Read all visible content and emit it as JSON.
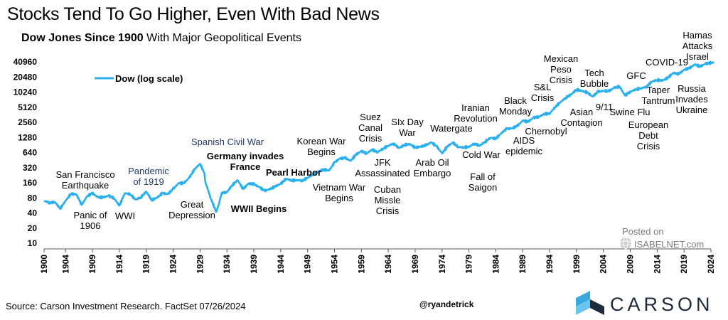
{
  "title": "Stocks Tend To Go Higher, Even With Bad News",
  "subtitle": {
    "bold": "Dow Jones Since 1900",
    "rest": " With Major Geopolitical Events"
  },
  "source": "Source: Carson Investment Research. FactSet 07/26/2024",
  "handle": "@ryandetrick",
  "posted": {
    "line1": "Posted on",
    "site": "ISABELNET.com"
  },
  "brand": {
    "name": "CARSON"
  },
  "colors": {
    "line": "#2ab0ee",
    "axis": "#555555",
    "event_dark": "#000000",
    "event_navy": "#1f3864",
    "brand": "#1d2b3a",
    "brand_light": "#3aa8e0"
  },
  "chart_data": {
    "type": "line",
    "title": "Stocks Tend To Go Higher, Even With Bad News",
    "subtitle": "Dow Jones Since 1900 With Major Geopolitical Events",
    "y_scale": "log",
    "ylim": [
      10,
      40960
    ],
    "xlim": [
      1900,
      2024
    ],
    "y_ticks": [
      "10",
      "20",
      "40",
      "80",
      "160",
      "320",
      "640",
      "1280",
      "2560",
      "5120",
      "10240",
      "20480",
      "40960"
    ],
    "x_ticks": [
      "1900",
      "1904",
      "1909",
      "1914",
      "1919",
      "1924",
      "1929",
      "1934",
      "1939",
      "1944",
      "1949",
      "1954",
      "1959",
      "1964",
      "1969",
      "1974",
      "1979",
      "1984",
      "1989",
      "1994",
      "1999",
      "2004",
      "2009",
      "2014",
      "2019",
      "2024"
    ],
    "grid": false,
    "legend_position": "top-left",
    "series": [
      {
        "name": "Dow (log scale)",
        "x": [
          1900,
          1901,
          1902,
          1903,
          1904,
          1905,
          1906,
          1907,
          1908,
          1909,
          1910,
          1911,
          1912,
          1913,
          1914,
          1915,
          1916,
          1917,
          1918,
          1919,
          1920,
          1921,
          1922,
          1923,
          1924,
          1925,
          1926,
          1927,
          1928,
          1929,
          1929.8,
          1930,
          1931,
          1932,
          1932.5,
          1933,
          1934,
          1935,
          1936,
          1937,
          1938,
          1939,
          1940,
          1941,
          1942,
          1943,
          1944,
          1945,
          1946,
          1947,
          1948,
          1949,
          1950,
          1951,
          1952,
          1953,
          1954,
          1955,
          1956,
          1957,
          1958,
          1959,
          1960,
          1961,
          1962,
          1963,
          1964,
          1965,
          1966,
          1967,
          1968,
          1969,
          1970,
          1971,
          1972,
          1973,
          1974,
          1975,
          1976,
          1977,
          1978,
          1979,
          1980,
          1981,
          1982,
          1983,
          1984,
          1985,
          1986,
          1987,
          1988,
          1989,
          1990,
          1991,
          1992,
          1993,
          1994,
          1995,
          1996,
          1997,
          1998,
          1999,
          2000,
          2001,
          2002,
          2003,
          2004,
          2005,
          2006,
          2007,
          2008,
          2009,
          2010,
          2011,
          2012,
          2013,
          2014,
          2015,
          2016,
          2017,
          2018,
          2019,
          2020,
          2021,
          2022,
          2023,
          2024.6
        ],
        "values": [
          70,
          64,
          66,
          49,
          70,
          96,
          94,
          58,
          86,
          99,
          82,
          82,
          88,
          79,
          56,
          99,
          95,
          74,
          82,
          107,
          72,
          81,
          99,
          95,
          120,
          156,
          157,
          202,
          300,
          381,
          250,
          165,
          78,
          42,
          60,
          100,
          104,
          144,
          180,
          120,
          154,
          150,
          131,
          111,
          119,
          136,
          152,
          193,
          177,
          181,
          177,
          200,
          235,
          269,
          292,
          281,
          404,
          488,
          499,
          435,
          583,
          679,
          615,
          731,
          652,
          762,
          874,
          969,
          785,
          905,
          943,
          800,
          838,
          890,
          1020,
          850,
          616,
          852,
          1004,
          831,
          805,
          838,
          963,
          875,
          1046,
          1258,
          1211,
          1546,
          1895,
          1938,
          2168,
          2753,
          2633,
          3168,
          3301,
          3754,
          3834,
          5117,
          6448,
          7908,
          9181,
          11497,
          10787,
          10021,
          8341,
          10453,
          10783,
          10717,
          12463,
          13264,
          8776,
          10428,
          11577,
          12217,
          13104,
          16576,
          17823,
          17425,
          19762,
          24719,
          23327,
          28538,
          30606,
          36338,
          33147,
          37689,
          40000
        ]
      }
    ],
    "annotations": [
      {
        "label": "San Francisco Earthquake",
        "year": 1906,
        "style": "dark"
      },
      {
        "label": "Panic of 1906",
        "year": 1907,
        "style": "dark"
      },
      {
        "label": "WWI",
        "year": 1914,
        "style": "dark"
      },
      {
        "label": "Pandemic of 1919",
        "year": 1919,
        "style": "navy"
      },
      {
        "label": "Great Depression",
        "year": 1930,
        "style": "dark"
      },
      {
        "label": "Spanish Civil War",
        "year": 1936,
        "style": "navy"
      },
      {
        "label": "Germany invades France",
        "year": 1940,
        "style": "bold"
      },
      {
        "label": "WWII Begins",
        "year": 1939,
        "style": "bold"
      },
      {
        "label": "Pearl Harbor",
        "year": 1941,
        "style": "bold"
      },
      {
        "label": "Korean War Begins",
        "year": 1950,
        "style": "dark"
      },
      {
        "label": "Vietnam War Begins",
        "year": 1955,
        "style": "dark"
      },
      {
        "label": "Suez Canal Crisis",
        "year": 1956,
        "style": "dark"
      },
      {
        "label": "JFK Assassinated",
        "year": 1963,
        "style": "dark"
      },
      {
        "label": "Cuban Missle Crisis",
        "year": 1962,
        "style": "dark"
      },
      {
        "label": "SIx Day War",
        "year": 1967,
        "style": "dark"
      },
      {
        "label": "Arab Oil Embargo",
        "year": 1973,
        "style": "dark"
      },
      {
        "label": "Watergate",
        "year": 1974,
        "style": "dark"
      },
      {
        "label": "Iranian Revolution",
        "year": 1979,
        "style": "dark"
      },
      {
        "label": "Cold War",
        "year": 1979,
        "style": "dark"
      },
      {
        "label": "Fall of Saigon",
        "year": 1975,
        "style": "dark"
      },
      {
        "label": "Black Monday",
        "year": 1987,
        "style": "dark"
      },
      {
        "label": "AIDS epidemic",
        "year": 1987,
        "style": "dark"
      },
      {
        "label": "S&L Crisis",
        "year": 1989,
        "style": "dark"
      },
      {
        "label": "Chernobyl",
        "year": 1986,
        "style": "dark"
      },
      {
        "label": "Mexican Peso Crisis",
        "year": 1994,
        "style": "dark"
      },
      {
        "label": "Asian Contagion",
        "year": 1997,
        "style": "dark"
      },
      {
        "label": "Tech Bubble",
        "year": 2000,
        "style": "dark"
      },
      {
        "label": "9/11",
        "year": 2001,
        "style": "dark"
      },
      {
        "label": "GFC",
        "year": 2008,
        "style": "dark"
      },
      {
        "label": "Swine Flu",
        "year": 2009,
        "style": "dark"
      },
      {
        "label": "European Debt Crisis",
        "year": 2010,
        "style": "dark"
      },
      {
        "label": "Taper Tantrum",
        "year": 2013,
        "style": "dark"
      },
      {
        "label": "COVID-19",
        "year": 2020,
        "style": "dark"
      },
      {
        "label": "Russia Invades Ukraine",
        "year": 2022,
        "style": "dark"
      },
      {
        "label": "Hamas Attacks Israel",
        "year": 2023,
        "style": "dark"
      }
    ]
  }
}
